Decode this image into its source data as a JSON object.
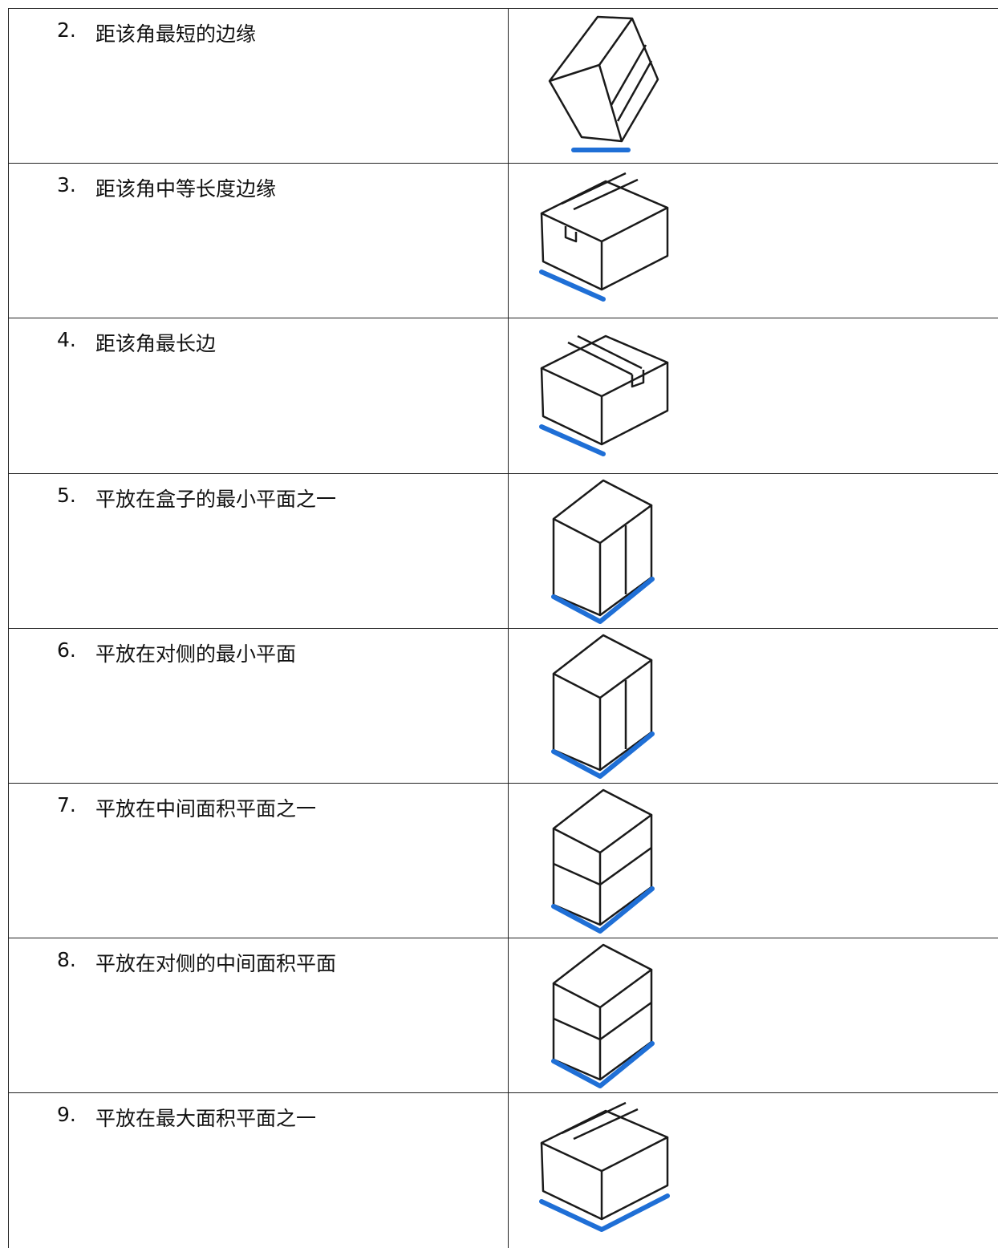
{
  "table": {
    "rows": [
      {
        "number": "2.",
        "text": "距该角最短的边缘"
      },
      {
        "number": "3.",
        "text": "距该角中等长度边缘"
      },
      {
        "number": "4.",
        "text": "距该角最长边"
      },
      {
        "number": "5.",
        "text": "平放在盒子的最小平面之一"
      },
      {
        "number": "6.",
        "text": "平放在对侧的最小平面"
      },
      {
        "number": "7.",
        "text": "平放在中间面积平面之一"
      },
      {
        "number": "8.",
        "text": "平放在对侧的中间面积平面"
      },
      {
        "number": "9.",
        "text": "平放在最大面积平面之一"
      }
    ]
  }
}
